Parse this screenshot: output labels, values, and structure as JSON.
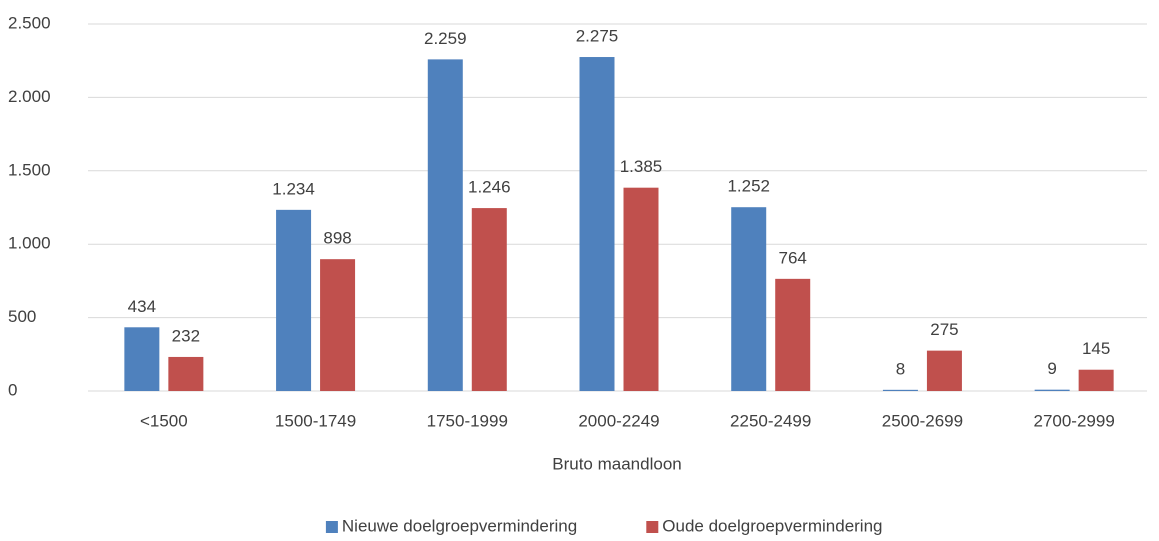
{
  "chart_data": {
    "type": "bar",
    "x_label": "Bruto maandloon",
    "categories": [
      "<1500",
      "1500-1749",
      "1750-1999",
      "2000-2249",
      "2250-2499",
      "2500-2699",
      "2700-2999"
    ],
    "series": [
      {
        "name": "Nieuwe doelgroepvermindering",
        "color": "#4f81bd",
        "values": [
          434,
          1234,
          2259,
          2275,
          1252,
          8,
          9
        ],
        "value_labels": [
          "434",
          "1.234",
          "2.259",
          "2.275",
          "1.252",
          "8",
          "9"
        ]
      },
      {
        "name": "Oude doelgroepvermindering",
        "color": "#c0504d",
        "values": [
          232,
          898,
          1246,
          1385,
          764,
          275,
          145
        ],
        "value_labels": [
          "232",
          "898",
          "1.246",
          "1.385",
          "764",
          "275",
          "145"
        ]
      }
    ],
    "ylim": [
      0,
      2500
    ],
    "yticks": [
      0,
      500,
      {
        "value": 1000,
        "label": "1.000"
      },
      {
        "value": 1500,
        "label": "1.500"
      },
      {
        "value": 2000,
        "label": "2.000"
      },
      {
        "value": 2500,
        "label": "2.500"
      }
    ],
    "grid": true,
    "legend": "bottom"
  }
}
